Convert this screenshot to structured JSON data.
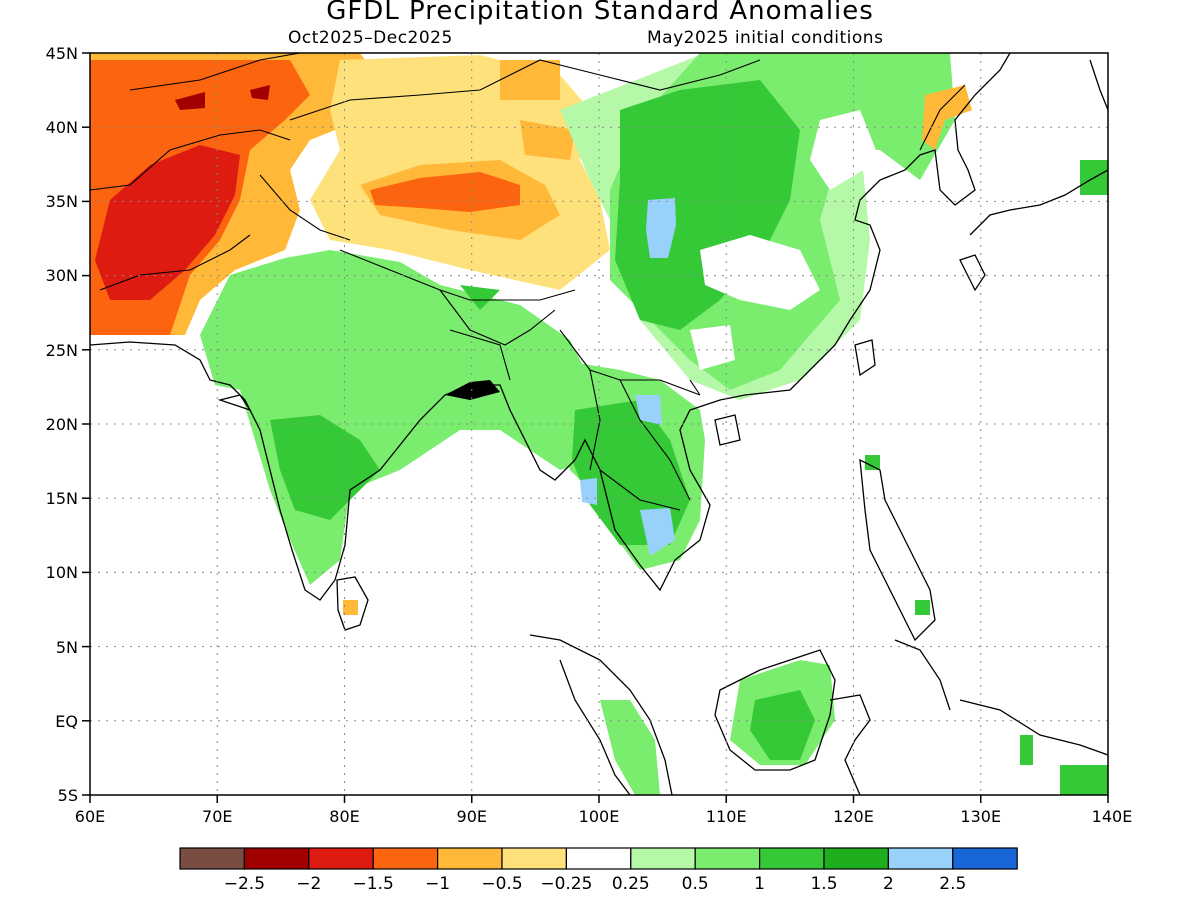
{
  "title": "GFDL Precipitation Standard Anomalies",
  "subtitle_left": "Oct2025–Dec2025",
  "subtitle_right": "May2025 initial conditions",
  "map": {
    "lon_range": [
      60,
      140
    ],
    "lat_range": [
      -5,
      45
    ],
    "lon_labels": [
      "60E",
      "70E",
      "80E",
      "90E",
      "100E",
      "110E",
      "120E",
      "130E",
      "140E"
    ],
    "lat_labels": [
      "45N",
      "40N",
      "35N",
      "30N",
      "25N",
      "20N",
      "15N",
      "10N",
      "5N",
      "EQ",
      "5S"
    ],
    "gridlines": "dotted"
  },
  "colorbar": {
    "colors": [
      "#7a4d43",
      "#a00000",
      "#dd1b10",
      "#fd6410",
      "#ffb838",
      "#ffe17b",
      "#ffffff",
      "#b5f8a8",
      "#7aec6e",
      "#36c937",
      "#1ead1c",
      "#98d2fa",
      "#1866d8"
    ],
    "labels": [
      "−2.5",
      "−2",
      "−1.5",
      "−1",
      "−0.5",
      "−0.25",
      "0.25",
      "0.5",
      "1",
      "1.5",
      "2",
      "2.5"
    ]
  }
}
